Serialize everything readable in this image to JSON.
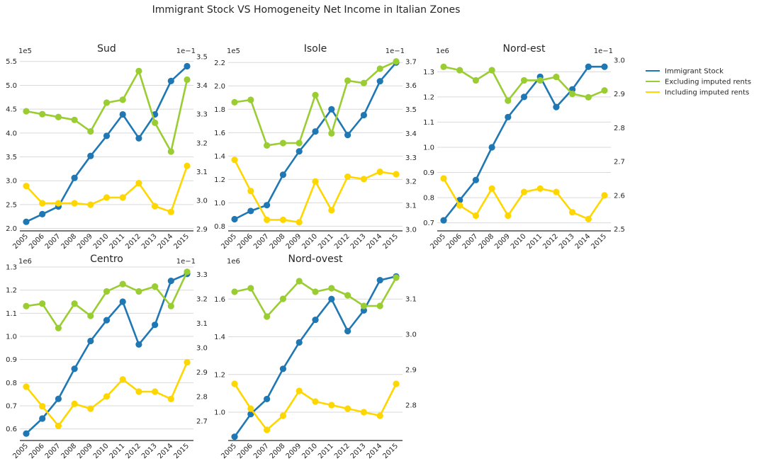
{
  "title": "Immigrant Stock VS Homogeneity Net Income in Italian Zones",
  "colors": {
    "immigrant": "#1f77b4",
    "excluding": "#9acd32",
    "including": "#ffd700",
    "grid": "#d9d9d9",
    "axis": "#262626"
  },
  "legend": {
    "placement": "right",
    "items": [
      {
        "label": "Immigrant Stock",
        "color": "#1f77b4"
      },
      {
        "label": "Excluding imputed rents",
        "color": "#9acd32"
      },
      {
        "label": "Including imputed rents",
        "color": "#ffd700"
      }
    ]
  },
  "chart_data": [
    {
      "type": "line",
      "title": "Sud",
      "x": [
        "2005",
        "2006",
        "2007",
        "2008",
        "2009",
        "2010",
        "2011",
        "2012",
        "2013",
        "2014",
        "2015"
      ],
      "left_axis": {
        "multiplier": "1e5",
        "ticks": [
          "2.0",
          "2.5",
          "3.0",
          "3.5",
          "4.0",
          "4.5",
          "5.0",
          "5.5"
        ],
        "ylim": [
          1.95,
          5.6
        ]
      },
      "right_axis": {
        "multiplier": "1e−1",
        "ticks": [
          "2.9",
          "3.0",
          "3.1",
          "3.2",
          "3.3",
          "3.4",
          "3.5"
        ],
        "ylim": [
          2.894,
          3.5
        ]
      },
      "series": [
        {
          "name": "Immigrant Stock",
          "axis": "left",
          "values": [
            2.14,
            2.3,
            2.46,
            3.06,
            3.52,
            3.94,
            4.39,
            3.89,
            4.39,
            5.09,
            5.4
          ]
        },
        {
          "name": "Excluding imputed rents",
          "axis": "right",
          "values": [
            3.31,
            3.3,
            3.29,
            3.28,
            3.24,
            3.34,
            3.35,
            3.45,
            3.27,
            3.17,
            3.42
          ]
        },
        {
          "name": "Including imputed rents",
          "axis": "right",
          "values": [
            3.05,
            2.99,
            2.99,
            2.99,
            2.985,
            3.01,
            3.01,
            3.06,
            2.98,
            2.96,
            3.12
          ]
        }
      ]
    },
    {
      "type": "line",
      "title": "Isole",
      "x": [
        "2005",
        "2006",
        "2007",
        "2008",
        "2009",
        "2010",
        "2011",
        "2012",
        "2013",
        "2014",
        "2015"
      ],
      "left_axis": {
        "multiplier": "1e5",
        "ticks": [
          "0.8",
          "1.0",
          "1.2",
          "1.4",
          "1.6",
          "1.8",
          "2.0",
          "2.2"
        ],
        "ylim": [
          0.76,
          2.25
        ]
      },
      "right_axis": {
        "multiplier": "1e−1",
        "ticks": [
          "3.0",
          "3.1",
          "3.2",
          "3.3",
          "3.4",
          "3.5",
          "3.6",
          "3.7"
        ],
        "ylim": [
          2.994,
          3.72
        ]
      },
      "series": [
        {
          "name": "Immigrant Stock",
          "axis": "left",
          "values": [
            0.86,
            0.93,
            0.98,
            1.24,
            1.44,
            1.61,
            1.8,
            1.58,
            1.75,
            2.04,
            2.2
          ]
        },
        {
          "name": "Excluding imputed rents",
          "axis": "right",
          "values": [
            3.53,
            3.54,
            3.35,
            3.36,
            3.36,
            3.56,
            3.4,
            3.62,
            3.61,
            3.67,
            3.7
          ]
        },
        {
          "name": "Including imputed rents",
          "axis": "right",
          "values": [
            3.29,
            3.16,
            3.04,
            3.04,
            3.03,
            3.2,
            3.08,
            3.22,
            3.21,
            3.24,
            3.23
          ]
        }
      ]
    },
    {
      "type": "line",
      "title": "Nord-est",
      "x": [
        "2005",
        "2006",
        "2007",
        "2008",
        "2009",
        "2010",
        "2011",
        "2012",
        "2013",
        "2014",
        "2015"
      ],
      "left_axis": {
        "multiplier": "1e6",
        "ticks": [
          "0.7",
          "0.8",
          "0.9",
          "1.0",
          "1.1",
          "1.2",
          "1.3"
        ],
        "ylim": [
          0.668,
          1.36
        ]
      },
      "right_axis": {
        "multiplier": "1e−1",
        "ticks": [
          "2.5",
          "2.6",
          "2.7",
          "2.8",
          "2.9",
          "3.0"
        ],
        "ylim": [
          2.495,
          3.01
        ]
      },
      "series": [
        {
          "name": "Immigrant Stock",
          "axis": "left",
          "values": [
            0.71,
            0.79,
            0.87,
            1.0,
            1.12,
            1.2,
            1.28,
            1.16,
            1.23,
            1.32,
            1.32
          ]
        },
        {
          "name": "Excluding imputed rents",
          "axis": "right",
          "values": [
            2.98,
            2.97,
            2.94,
            2.97,
            2.88,
            2.94,
            2.94,
            2.95,
            2.9,
            2.89,
            2.91
          ]
        },
        {
          "name": "Including imputed rents",
          "axis": "right",
          "values": [
            2.65,
            2.57,
            2.54,
            2.62,
            2.54,
            2.61,
            2.62,
            2.61,
            2.55,
            2.53,
            2.6
          ]
        }
      ]
    },
    {
      "type": "line",
      "title": "Centro",
      "x": [
        "2005",
        "2006",
        "2007",
        "2008",
        "2009",
        "2010",
        "2011",
        "2012",
        "2013",
        "2014",
        "2015"
      ],
      "left_axis": {
        "multiplier": "1e6",
        "ticks": [
          "0.6",
          "0.7",
          "0.8",
          "0.9",
          "1.0",
          "1.1",
          "1.2",
          "1.3"
        ],
        "ylim": [
          0.55,
          1.3
        ]
      },
      "right_axis": {
        "multiplier": "1e−1",
        "ticks": [
          "2.7",
          "2.8",
          "2.9",
          "3.0",
          "3.1",
          "3.2",
          "3.3"
        ],
        "ylim": [
          2.62,
          3.33
        ]
      },
      "series": [
        {
          "name": "Immigrant Stock",
          "axis": "left",
          "values": [
            0.58,
            0.645,
            0.73,
            0.86,
            0.98,
            1.07,
            1.15,
            0.965,
            1.05,
            1.24,
            1.27
          ]
        },
        {
          "name": "Excluding imputed rents",
          "axis": "right",
          "values": [
            3.17,
            3.18,
            3.08,
            3.18,
            3.13,
            3.23,
            3.26,
            3.23,
            3.25,
            3.17,
            3.31
          ]
        },
        {
          "name": "Including imputed rents",
          "axis": "right",
          "values": [
            2.84,
            2.76,
            2.68,
            2.77,
            2.75,
            2.8,
            2.87,
            2.82,
            2.82,
            2.79,
            2.94
          ]
        }
      ]
    },
    {
      "type": "line",
      "title": "Nord-ovest",
      "x": [
        "2005",
        "2006",
        "2007",
        "2008",
        "2009",
        "2010",
        "2011",
        "2012",
        "2013",
        "2014",
        "2015"
      ],
      "left_axis": {
        "multiplier": "1e6",
        "ticks": [
          "1.0",
          "1.2",
          "1.4",
          "1.6"
        ],
        "ylim": [
          0.85,
          1.77
        ]
      },
      "right_axis": {
        "multiplier": "",
        "ticks": [
          "2.8",
          "2.9",
          "3.0",
          "3.1"
        ],
        "ylim": [
          2.7,
          3.19
        ]
      },
      "series": [
        {
          "name": "Immigrant Stock",
          "axis": "left",
          "values": [
            0.87,
            0.99,
            1.07,
            1.23,
            1.37,
            1.49,
            1.6,
            1.43,
            1.54,
            1.7,
            1.72
          ]
        },
        {
          "name": "Excluding imputed rents",
          "axis": "right",
          "values": [
            3.12,
            3.13,
            3.05,
            3.1,
            3.15,
            3.12,
            3.13,
            3.11,
            3.08,
            3.08,
            3.16
          ]
        },
        {
          "name": "Including imputed rents",
          "axis": "right",
          "values": [
            2.86,
            2.79,
            2.73,
            2.77,
            2.84,
            2.81,
            2.8,
            2.79,
            2.78,
            2.77,
            2.86
          ]
        }
      ]
    }
  ]
}
